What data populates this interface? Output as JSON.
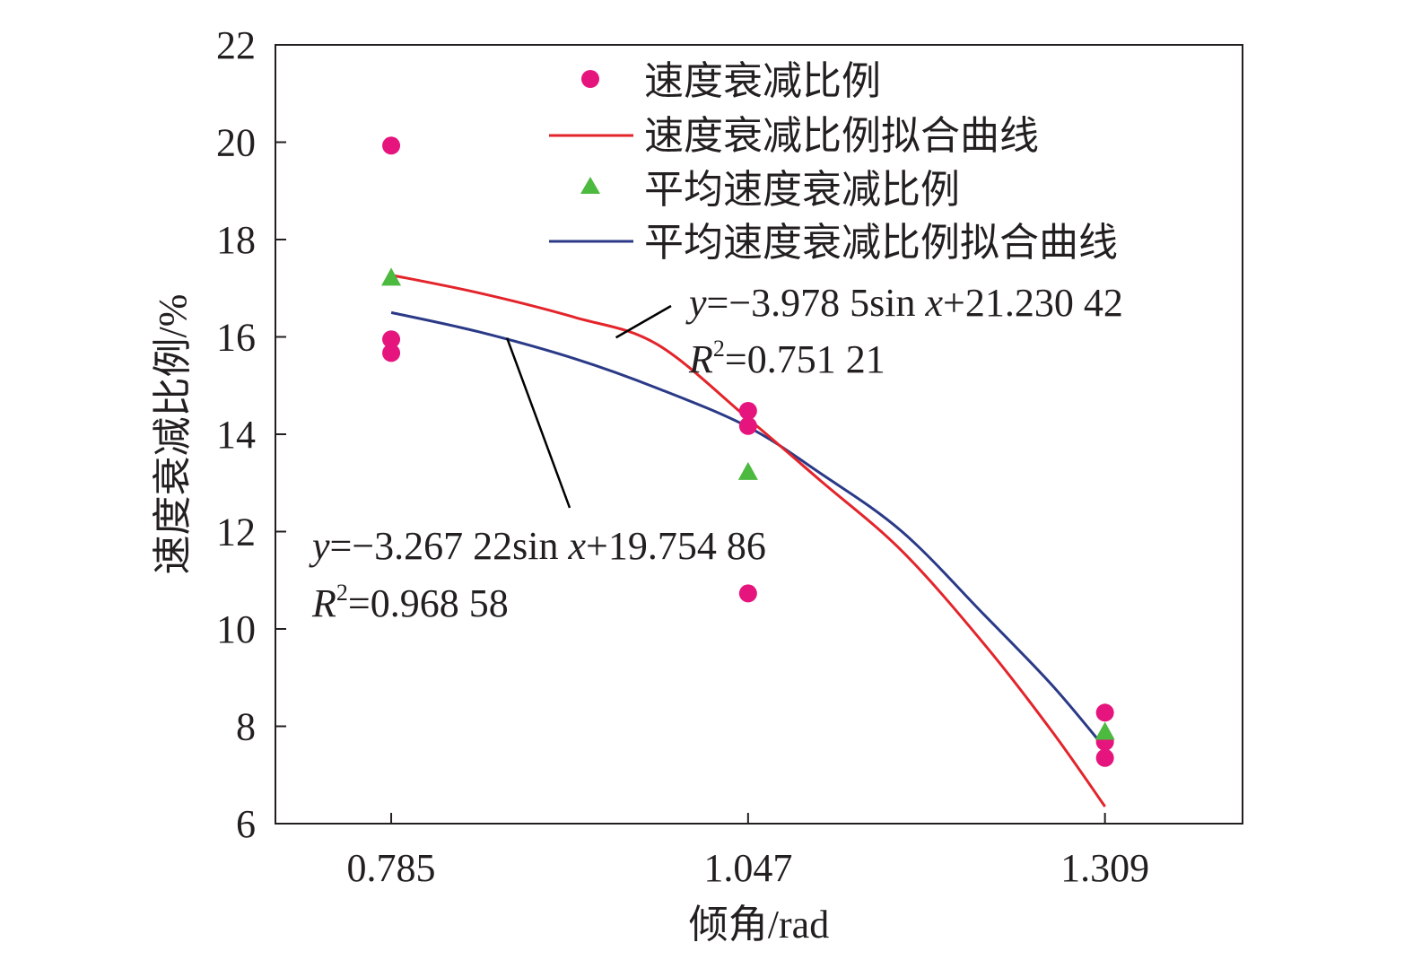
{
  "chart_data": {
    "type": "scatter",
    "title": "",
    "xlabel": "倾角/rad",
    "ylabel": "速度衰减比例/%",
    "x_ticks": [
      "0.785",
      "1.047",
      "1.309"
    ],
    "y_ticks": [
      "6",
      "8",
      "10",
      "12",
      "14",
      "16",
      "18",
      "20",
      "22"
    ],
    "xlim": [
      0.7,
      1.41
    ],
    "ylim": [
      6,
      22
    ],
    "grid": false,
    "legend_position": "top-right",
    "colors": {
      "points": "#e5157d",
      "fit_red": "#e3242b",
      "triangles": "#4cb93f",
      "fit_blue": "#2b3a87",
      "axis": "#231f20"
    },
    "series": [
      {
        "name": "速度衰减比例",
        "kind": "scatter",
        "marker": "circle",
        "points": [
          [
            0.785,
            19.93
          ],
          [
            0.785,
            15.95
          ],
          [
            0.785,
            15.67
          ],
          [
            1.047,
            14.48
          ],
          [
            1.047,
            14.17
          ],
          [
            1.047,
            10.73
          ],
          [
            1.309,
            8.28
          ],
          [
            1.309,
            7.68
          ],
          [
            1.309,
            7.35
          ]
        ]
      },
      {
        "name": "速度衰减比例拟合曲线",
        "kind": "line",
        "points": [
          [
            0.785,
            17.27
          ],
          [
            0.85,
            16.9
          ],
          [
            0.92,
            16.4
          ],
          [
            0.98,
            15.85
          ],
          [
            1.047,
            14.32
          ],
          [
            1.1,
            13.05
          ],
          [
            1.16,
            11.6
          ],
          [
            1.22,
            9.7
          ],
          [
            1.27,
            7.9
          ],
          [
            1.309,
            6.35
          ]
        ]
      },
      {
        "name": "平均速度衰减比例",
        "kind": "scatter",
        "marker": "triangle",
        "points": [
          [
            0.785,
            17.2
          ],
          [
            1.047,
            13.21
          ],
          [
            1.309,
            7.87
          ]
        ]
      },
      {
        "name": "平均速度衰减比例拟合曲线",
        "kind": "line",
        "points": [
          [
            0.785,
            16.5
          ],
          [
            0.85,
            16.1
          ],
          [
            0.92,
            15.55
          ],
          [
            0.98,
            14.95
          ],
          [
            1.047,
            14.15
          ],
          [
            1.1,
            13.2
          ],
          [
            1.16,
            12.0
          ],
          [
            1.22,
            10.3
          ],
          [
            1.27,
            8.85
          ],
          [
            1.309,
            7.55
          ]
        ]
      }
    ],
    "annotations": [
      {
        "series": "速度衰减比例拟合曲线",
        "equation_prefix": "y",
        "equation_body": "=−3.978 5sin ",
        "equation_x": "x",
        "equation_tail": "+21.230 42",
        "r2_label": "R",
        "r2_sup": "2",
        "r2_value": "=0.751 21"
      },
      {
        "series": "平均速度衰减比例拟合曲线",
        "equation_prefix": "y",
        "equation_body": "=−3.267 22sin ",
        "equation_x": "x",
        "equation_tail": "+19.754 86",
        "r2_label": "R",
        "r2_sup": "2",
        "r2_value": "=0.968 58"
      }
    ]
  }
}
